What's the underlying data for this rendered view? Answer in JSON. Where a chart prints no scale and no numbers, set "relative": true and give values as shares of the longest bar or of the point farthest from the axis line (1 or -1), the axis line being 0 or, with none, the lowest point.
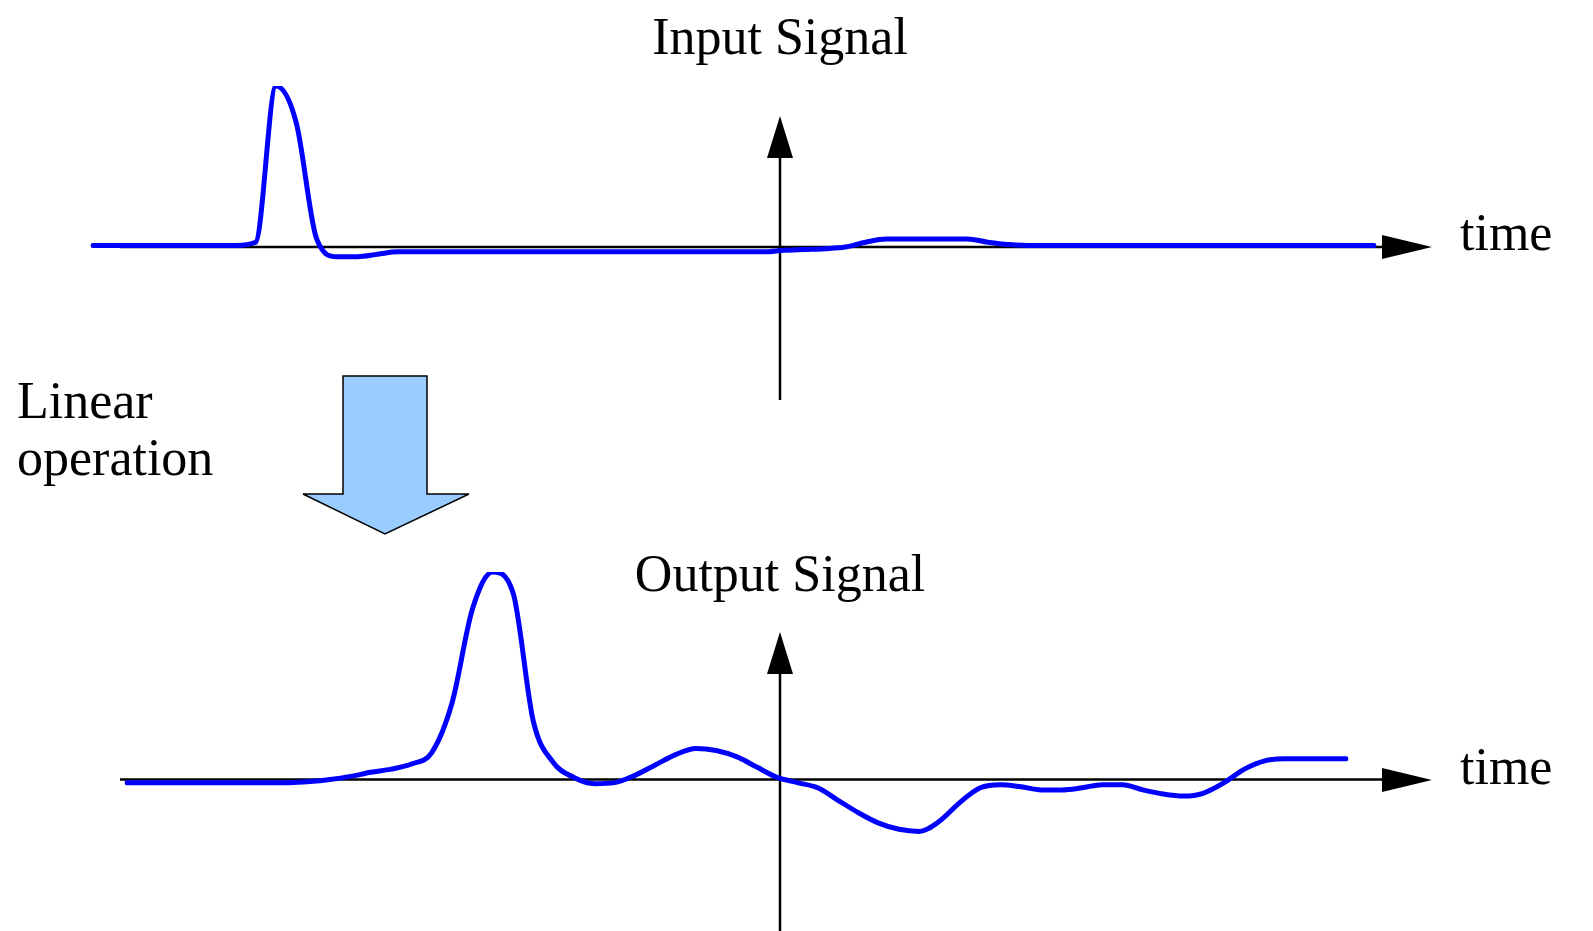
{
  "chart_data": [
    {
      "type": "line",
      "title": "Input Signal",
      "xlabel": "time",
      "relative": true,
      "annotations": [
        "Linear operation"
      ],
      "categories": [
        null,
        null,
        null,
        null,
        null,
        null,
        null,
        null,
        null,
        null,
        null,
        null,
        null,
        null,
        null,
        null,
        null,
        null,
        null,
        null,
        null,
        null,
        null,
        null,
        null,
        null,
        null,
        null,
        null,
        null,
        null,
        null,
        null,
        null,
        null,
        null,
        null,
        null,
        null,
        null,
        null,
        null,
        null,
        null,
        null,
        null,
        null,
        null,
        null,
        null,
        null,
        null,
        null,
        null,
        null,
        null,
        null,
        null,
        null,
        null,
        null,
        null,
        null,
        null
      ],
      "series": [
        {
          "color": "#0000ff",
          "values": [
            0.01,
            0.01,
            0.01,
            0.01,
            0.01,
            0.01,
            0.01,
            0.01,
            0.03,
            1,
            0.77,
            0.05,
            -0.06,
            -0.06,
            -0.045,
            -0.03,
            -0.03,
            -0.03,
            -0.03,
            -0.03,
            -0.03,
            -0.03,
            -0.03,
            -0.03,
            -0.03,
            -0.03,
            -0.03,
            -0.03,
            -0.03,
            -0.03,
            -0.03,
            -0.03,
            -0.03,
            -0.03,
            -0.02,
            -0.015,
            -0.01,
            0,
            0.03,
            0.05,
            0.05,
            0.05,
            0.05,
            0.05,
            0.03,
            0.015,
            0.01,
            0.01,
            0.01,
            0.01,
            0.01,
            0.01,
            0.01,
            0.01,
            0.01,
            0.01,
            0.01,
            0.01,
            0.01,
            0.01,
            0.01,
            0.01,
            0.01,
            0.01
          ]
        }
      ]
    },
    {
      "type": "line",
      "title": "Output Signal",
      "xlabel": "time",
      "relative": true,
      "categories": [
        null,
        null,
        null,
        null,
        null,
        null,
        null,
        null,
        null,
        null,
        null,
        null,
        null,
        null,
        null,
        null,
        null,
        null,
        null,
        null,
        null,
        null,
        null,
        null,
        null,
        null,
        null,
        null,
        null,
        null,
        null,
        null,
        null,
        null,
        null,
        null,
        null,
        null,
        null,
        null,
        null,
        null,
        null,
        null,
        null,
        null,
        null,
        null,
        null,
        null,
        null,
        null,
        null,
        null,
        null,
        null,
        null,
        null,
        null,
        null,
        null
      ],
      "series": [
        {
          "color": "#0000ff",
          "values": [
            -0.015,
            -0.015,
            -0.015,
            -0.015,
            -0.015,
            -0.015,
            -0.015,
            -0.015,
            -0.015,
            -0.01,
            0,
            0.015,
            0.035,
            0.05,
            0.075,
            0.13,
            0.37,
            0.82,
            1,
            0.9,
            0.28,
            0.08,
            0.01,
            -0.02,
            -0.015,
            0.02,
            0.07,
            0.12,
            0.15,
            0.14,
            0.11,
            0.06,
            0.01,
            -0.015,
            -0.04,
            -0.1,
            -0.16,
            -0.21,
            -0.24,
            -0.25,
            -0.2,
            -0.11,
            -0.04,
            -0.025,
            -0.035,
            -0.05,
            -0.05,
            -0.04,
            -0.025,
            -0.025,
            -0.05,
            -0.07,
            -0.08,
            -0.065,
            -0.015,
            0.05,
            0.09,
            0.1,
            0.1,
            0.1,
            0.1
          ]
        }
      ]
    }
  ]
}
